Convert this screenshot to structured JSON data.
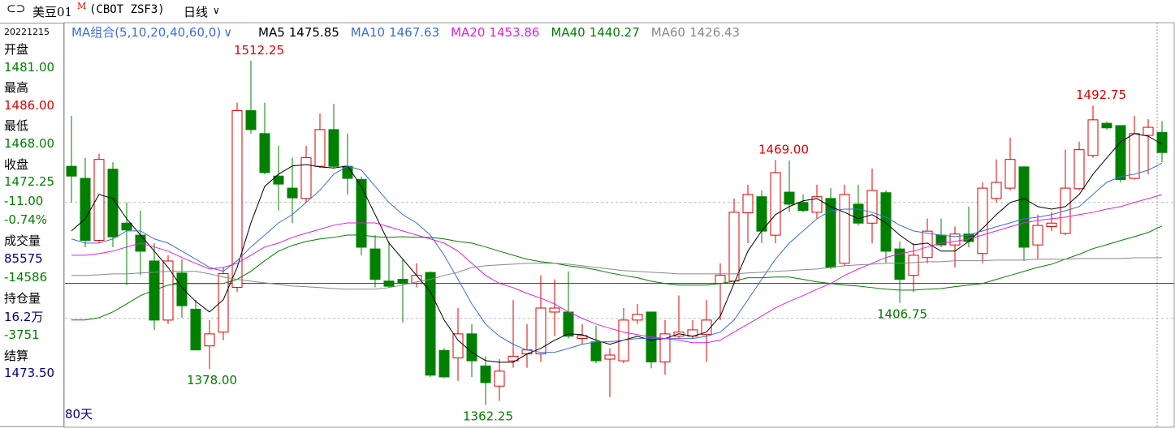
{
  "header": {
    "title": "美豆01",
    "superscript": "M",
    "code": "(CBOT ZSF3)",
    "period": "日线"
  },
  "info_panel": {
    "date": "20221215",
    "rows": [
      {
        "text": "开盘",
        "color": "#000000"
      },
      {
        "text": "1481.00",
        "color": "#008000"
      },
      {
        "text": "最高",
        "color": "#000000"
      },
      {
        "text": "1486.00",
        "color": "#e00000"
      },
      {
        "text": "最低",
        "color": "#000000"
      },
      {
        "text": "1468.00",
        "color": "#008000"
      },
      {
        "text": "收盘",
        "color": "#000000"
      },
      {
        "text": "1472.25",
        "color": "#008000"
      },
      {
        "text": "-11.00",
        "color": "#008000"
      },
      {
        "text": "-0.74%",
        "color": "#008000"
      },
      {
        "text": "成交量",
        "color": "#000000"
      },
      {
        "text": "85575",
        "color": "#000080"
      },
      {
        "text": "-14586",
        "color": "#008000"
      },
      {
        "text": "持仓量",
        "color": "#000000"
      },
      {
        "text": "16.2万",
        "color": "#000080"
      },
      {
        "text": "-3751",
        "color": "#008000"
      },
      {
        "text": "结算",
        "color": "#000000"
      },
      {
        "text": "1473.50",
        "color": "#000080"
      }
    ]
  },
  "chart_data": {
    "type": "candlestick",
    "ma_group_label": "MA组合(5,10,20,40,60,0)",
    "window_label": "80天",
    "up_color": "#e00000",
    "down_color": "#008000",
    "ylim": [
      1360,
      1520
    ],
    "grid_lines": [
      1450.5,
      1400
    ],
    "price_line": 1415.25,
    "open": [
      1466.25,
      1461.0,
      1434.0,
      1465.0,
      1441.5,
      1436.25,
      1425.0,
      1399.25,
      1419.75,
      1404.0,
      1388.0,
      1394.0,
      1413.5,
      1490.5,
      1480.5,
      1462.0,
      1456.75,
      1452.25,
      1466.25,
      1482.25,
      1466.25,
      1460.5,
      1430.25,
      1416.25,
      1417.0,
      1415.25,
      1420.0,
      1386.0,
      1382.75,
      1393.25,
      1379.25,
      1370.5,
      1381.5,
      1384.5,
      1384.5,
      1402.75,
      1402.75,
      1391.25,
      1389.75,
      1382.25,
      1381.5,
      1399.25,
      1402.75,
      1381.0,
      1392.25,
      1392.25,
      1393.0,
      1415.25,
      1416.25,
      1446.0,
      1453.0,
      1436.25,
      1455.0,
      1450.5,
      1446.25,
      1452.25,
      1424.0,
      1449.75,
      1441.5,
      1454.75,
      1430.25,
      1418.75,
      1426.5,
      1436.25,
      1432.0,
      1436.75,
      1428.25,
      1452.25,
      1456.75,
      1466.0,
      1432.0,
      1440.0,
      1437.0,
      1456.5,
      1471.0,
      1485.0,
      1484.0,
      1461.0,
      1479.75,
      1481
    ],
    "high": [
      1488.25,
      1470.0,
      1471.75,
      1468.0,
      1450.5,
      1447.0,
      1432.75,
      1427.5,
      1425.75,
      1408.0,
      1399.25,
      1422.25,
      1494.0,
      1512.25,
      1494.0,
      1475.25,
      1470.0,
      1475.25,
      1489.25,
      1493.5,
      1480.5,
      1461.75,
      1436.25,
      1433.5,
      1425.75,
      1424.0,
      1420.5,
      1387.0,
      1404.5,
      1397.5,
      1383.5,
      1382.25,
      1408.0,
      1397.5,
      1418.75,
      1417.0,
      1420.5,
      1397.5,
      1396.75,
      1387.0,
      1404.5,
      1406.25,
      1402.75,
      1399.25,
      1410.0,
      1399.25,
      1408.0,
      1424.0,
      1452.25,
      1458.25,
      1455.75,
      1469.0,
      1468.75,
      1454.0,
      1458.25,
      1456.75,
      1458.25,
      1458.25,
      1465.25,
      1455.75,
      1433.5,
      1432.75,
      1443.5,
      1443.5,
      1440.0,
      1448.75,
      1459.25,
      1469.25,
      1478.75,
      1466.25,
      1445.25,
      1446.25,
      1473.5,
      1477.0,
      1492.75,
      1485.75,
      1484.0,
      1488.25,
      1486.75,
      1486
    ],
    "low": [
      1450.5,
      1431.0,
      1432.75,
      1431.0,
      1414.5,
      1418.75,
      1395.0,
      1397.5,
      1400.25,
      1386.25,
      1378.0,
      1390.5,
      1411.5,
      1480.5,
      1462.75,
      1447.0,
      1441.5,
      1450.5,
      1465.5,
      1465.25,
      1454.0,
      1427.5,
      1413.5,
      1413.5,
      1398.25,
      1413.5,
      1374.5,
      1374.0,
      1372.75,
      1374.5,
      1362.25,
      1364.0,
      1378.5,
      1378.5,
      1381.0,
      1392.25,
      1391.25,
      1388.75,
      1380.5,
      1365.75,
      1380.5,
      1397.5,
      1378.25,
      1375.5,
      1391.25,
      1391.25,
      1381.0,
      1399.25,
      1415.25,
      1432.75,
      1432.75,
      1432.75,
      1446.25,
      1446.25,
      1443.5,
      1421.5,
      1423.0,
      1440.5,
      1432.75,
      1424.0,
      1406.75,
      1411.5,
      1424.0,
      1431.0,
      1422.25,
      1431.0,
      1424.0,
      1450.5,
      1455.75,
      1425.0,
      1425.75,
      1438.0,
      1436.25,
      1455.75,
      1470.0,
      1482.25,
      1459.25,
      1460.5,
      1462.75,
      1468
    ],
    "close": [
      1462.0,
      1434.0,
      1469.25,
      1435.5,
      1438.5,
      1429.25,
      1399.25,
      1425.0,
      1405.5,
      1386.25,
      1393.25,
      1419.5,
      1490.5,
      1482.25,
      1463.5,
      1458.5,
      1452.5,
      1470.0,
      1482.25,
      1466.25,
      1461.0,
      1431.0,
      1417.0,
      1414.0,
      1415.25,
      1418.75,
      1375.25,
      1374.5,
      1393.25,
      1381.5,
      1372.0,
      1377.0,
      1383.5,
      1386.25,
      1404.5,
      1404.5,
      1392.25,
      1392.5,
      1381.5,
      1384.0,
      1399.25,
      1401.75,
      1381.0,
      1393.25,
      1394.0,
      1395.0,
      1399.25,
      1418.75,
      1446.25,
      1454.0,
      1438.0,
      1463.5,
      1449.75,
      1447.0,
      1453.0,
      1422.25,
      1454.0,
      1441.5,
      1455.75,
      1429.25,
      1417.0,
      1427.5,
      1438.0,
      1432.0,
      1436.75,
      1433.5,
      1456.75,
      1459.25,
      1469.25,
      1431.0,
      1440.5,
      1441.5,
      1456.75,
      1473.5,
      1486.5,
      1483.0,
      1460.5,
      1480.5,
      1483.25,
      1472.25
    ],
    "series": [
      {
        "name": "MA5",
        "color": "#000000",
        "values": [
          1438.1,
          1443.4,
          1454.0,
          1452.2,
          1443.4,
          1436.3,
          1429.3,
          1422.2,
          1413.4,
          1407.4,
          1402.8,
          1408.1,
          1422.2,
          1441.6,
          1457.5,
          1462.8,
          1466.4,
          1467.0,
          1466.0,
          1465.5,
          1466.4,
          1457.5,
          1445.2,
          1432.8,
          1425.8,
          1418.7,
          1411.6,
          1399.3,
          1390.5,
          1385.2,
          1381.6,
          1380.9,
          1380.9,
          1384.5,
          1386.9,
          1390.5,
          1393.3,
          1392.9,
          1390.5,
          1388.7,
          1390.5,
          1392.2,
          1390.5,
          1391.2,
          1393.3,
          1392.2,
          1394.0,
          1401.0,
          1415.2,
          1429.3,
          1438.1,
          1445.2,
          1448.7,
          1451.2,
          1452.2,
          1448.7,
          1446.2,
          1443.4,
          1445.2,
          1441.6,
          1436.3,
          1432.1,
          1432.8,
          1429.3,
          1429.3,
          1433.5,
          1439.2,
          1445.2,
          1450.5,
          1452.2,
          1448.7,
          1447.6,
          1448.7,
          1454.0,
          1462.8,
          1469.9,
          1476.9,
          1480.5,
          1479.4,
          1475.85
        ]
      },
      {
        "name": "MA10",
        "color": "#3b6fd8",
        "values": [
          1434.6,
          1432.8,
          1432.8,
          1434.6,
          1438.1,
          1438.1,
          1434.6,
          1432.8,
          1429.3,
          1425.8,
          1422.2,
          1420.5,
          1425.1,
          1431.1,
          1436.3,
          1441.6,
          1445.2,
          1450.5,
          1455.8,
          1462.8,
          1466.4,
          1464.6,
          1457.5,
          1450.5,
          1445.2,
          1441.6,
          1436.3,
          1427.5,
          1417.0,
          1406.3,
          1397.5,
          1392.2,
          1388.7,
          1386.2,
          1385.2,
          1385.2,
          1386.9,
          1388.7,
          1389.8,
          1389.8,
          1390.5,
          1391.2,
          1391.2,
          1391.2,
          1391.2,
          1391.2,
          1392.2,
          1394.0,
          1399.3,
          1408.1,
          1417.0,
          1425.8,
          1432.8,
          1438.1,
          1443.4,
          1446.9,
          1447.6,
          1447.6,
          1446.2,
          1444.1,
          1440.6,
          1438.1,
          1437.1,
          1436.3,
          1435.6,
          1436.3,
          1438.1,
          1439.9,
          1441.6,
          1443.4,
          1444.1,
          1445.2,
          1446.9,
          1448.7,
          1454.0,
          1459.3,
          1461.8,
          1462.8,
          1464.6,
          1467.63
        ]
      },
      {
        "name": "MA20",
        "color": "#e020e0",
        "values": [
          1427.5,
          1427.5,
          1428.2,
          1429.3,
          1431.1,
          1432.8,
          1431.1,
          1429.3,
          1426.5,
          1424.0,
          1421.5,
          1422.2,
          1424.0,
          1427.5,
          1431.1,
          1432.8,
          1435.3,
          1437.1,
          1438.8,
          1440.6,
          1441.6,
          1441.6,
          1441.6,
          1439.9,
          1438.1,
          1436.3,
          1434.6,
          1432.8,
          1429.3,
          1424.0,
          1418.7,
          1415.2,
          1413.4,
          1410.9,
          1408.8,
          1406.3,
          1402.8,
          1400.0,
          1397.5,
          1395.7,
          1394.0,
          1392.9,
          1391.9,
          1391.2,
          1390.5,
          1389.4,
          1389.4,
          1390.5,
          1394.0,
          1397.5,
          1401.0,
          1404.6,
          1407.4,
          1409.9,
          1412.7,
          1415.2,
          1418.7,
          1421.5,
          1424.0,
          1426.5,
          1428.2,
          1429.3,
          1431.1,
          1432.8,
          1433.5,
          1434.6,
          1436.3,
          1438.1,
          1439.9,
          1441.6,
          1442.7,
          1443.4,
          1444.1,
          1445.2,
          1446.2,
          1447.6,
          1448.7,
          1450.5,
          1452.2,
          1453.86
        ]
      },
      {
        "name": "MA40",
        "color": "#008000",
        "values": [
          1399.3,
          1399.3,
          1400.3,
          1402.8,
          1406.3,
          1409.9,
          1412.3,
          1414.5,
          1415.2,
          1415.2,
          1415.2,
          1415.2,
          1417.0,
          1420.5,
          1425.1,
          1429.3,
          1431.8,
          1433.5,
          1434.6,
          1435.3,
          1436.3,
          1436.3,
          1435.6,
          1435.3,
          1435.6,
          1435.3,
          1435.3,
          1434.6,
          1433.5,
          1432.8,
          1431.1,
          1429.3,
          1427.5,
          1425.8,
          1424.7,
          1424.0,
          1422.9,
          1422.2,
          1421.2,
          1419.8,
          1418.7,
          1417.7,
          1416.2,
          1415.2,
          1414.5,
          1414.5,
          1414.5,
          1415.2,
          1416.2,
          1417.7,
          1417.7,
          1418.0,
          1418.0,
          1417.0,
          1415.9,
          1415.2,
          1414.5,
          1414.1,
          1413.4,
          1412.7,
          1412.3,
          1412.3,
          1412.7,
          1413.0,
          1413.8,
          1414.5,
          1415.2,
          1417.0,
          1418.7,
          1420.5,
          1422.2,
          1423.6,
          1425.8,
          1427.9,
          1430.4,
          1432.1,
          1433.9,
          1435.6,
          1437.4,
          1440.27
        ]
      },
      {
        "name": "MA60",
        "color": "#888888",
        "values": [
          1418.7,
          1418.7,
          1419.0,
          1419.4,
          1419.4,
          1419.8,
          1420.1,
          1420.5,
          1420.5,
          1420.5,
          1419.4,
          1418.0,
          1417.0,
          1416.2,
          1415.5,
          1414.8,
          1414.1,
          1413.8,
          1413.4,
          1413.0,
          1412.7,
          1412.7,
          1412.7,
          1413.4,
          1414.5,
          1415.9,
          1417.0,
          1418.7,
          1420.1,
          1422.2,
          1422.9,
          1423.3,
          1423.6,
          1424.0,
          1424.0,
          1424.0,
          1423.6,
          1422.9,
          1422.2,
          1421.5,
          1420.8,
          1420.5,
          1420.1,
          1419.8,
          1419.4,
          1419.4,
          1419.4,
          1419.4,
          1419.4,
          1419.8,
          1420.1,
          1420.5,
          1420.8,
          1421.2,
          1421.5,
          1422.2,
          1422.9,
          1423.3,
          1423.6,
          1424.0,
          1424.0,
          1424.3,
          1424.7,
          1424.7,
          1425.1,
          1425.1,
          1425.1,
          1425.4,
          1425.4,
          1425.4,
          1425.8,
          1425.8,
          1425.8,
          1426.1,
          1426.1,
          1426.1,
          1426.1,
          1426.4,
          1426.4,
          1426.43
        ]
      }
    ],
    "annotations": [
      {
        "value": 1512.25,
        "label": "1512.25"
      },
      {
        "value": 1378.0,
        "label": "1378.00"
      },
      {
        "value": 1362.25,
        "label": "1362.25"
      },
      {
        "value": 1469.0,
        "label": "1469.00"
      },
      {
        "value": 1406.75,
        "label": "1406.75"
      },
      {
        "value": 1492.75,
        "label": "1492.75"
      }
    ]
  }
}
